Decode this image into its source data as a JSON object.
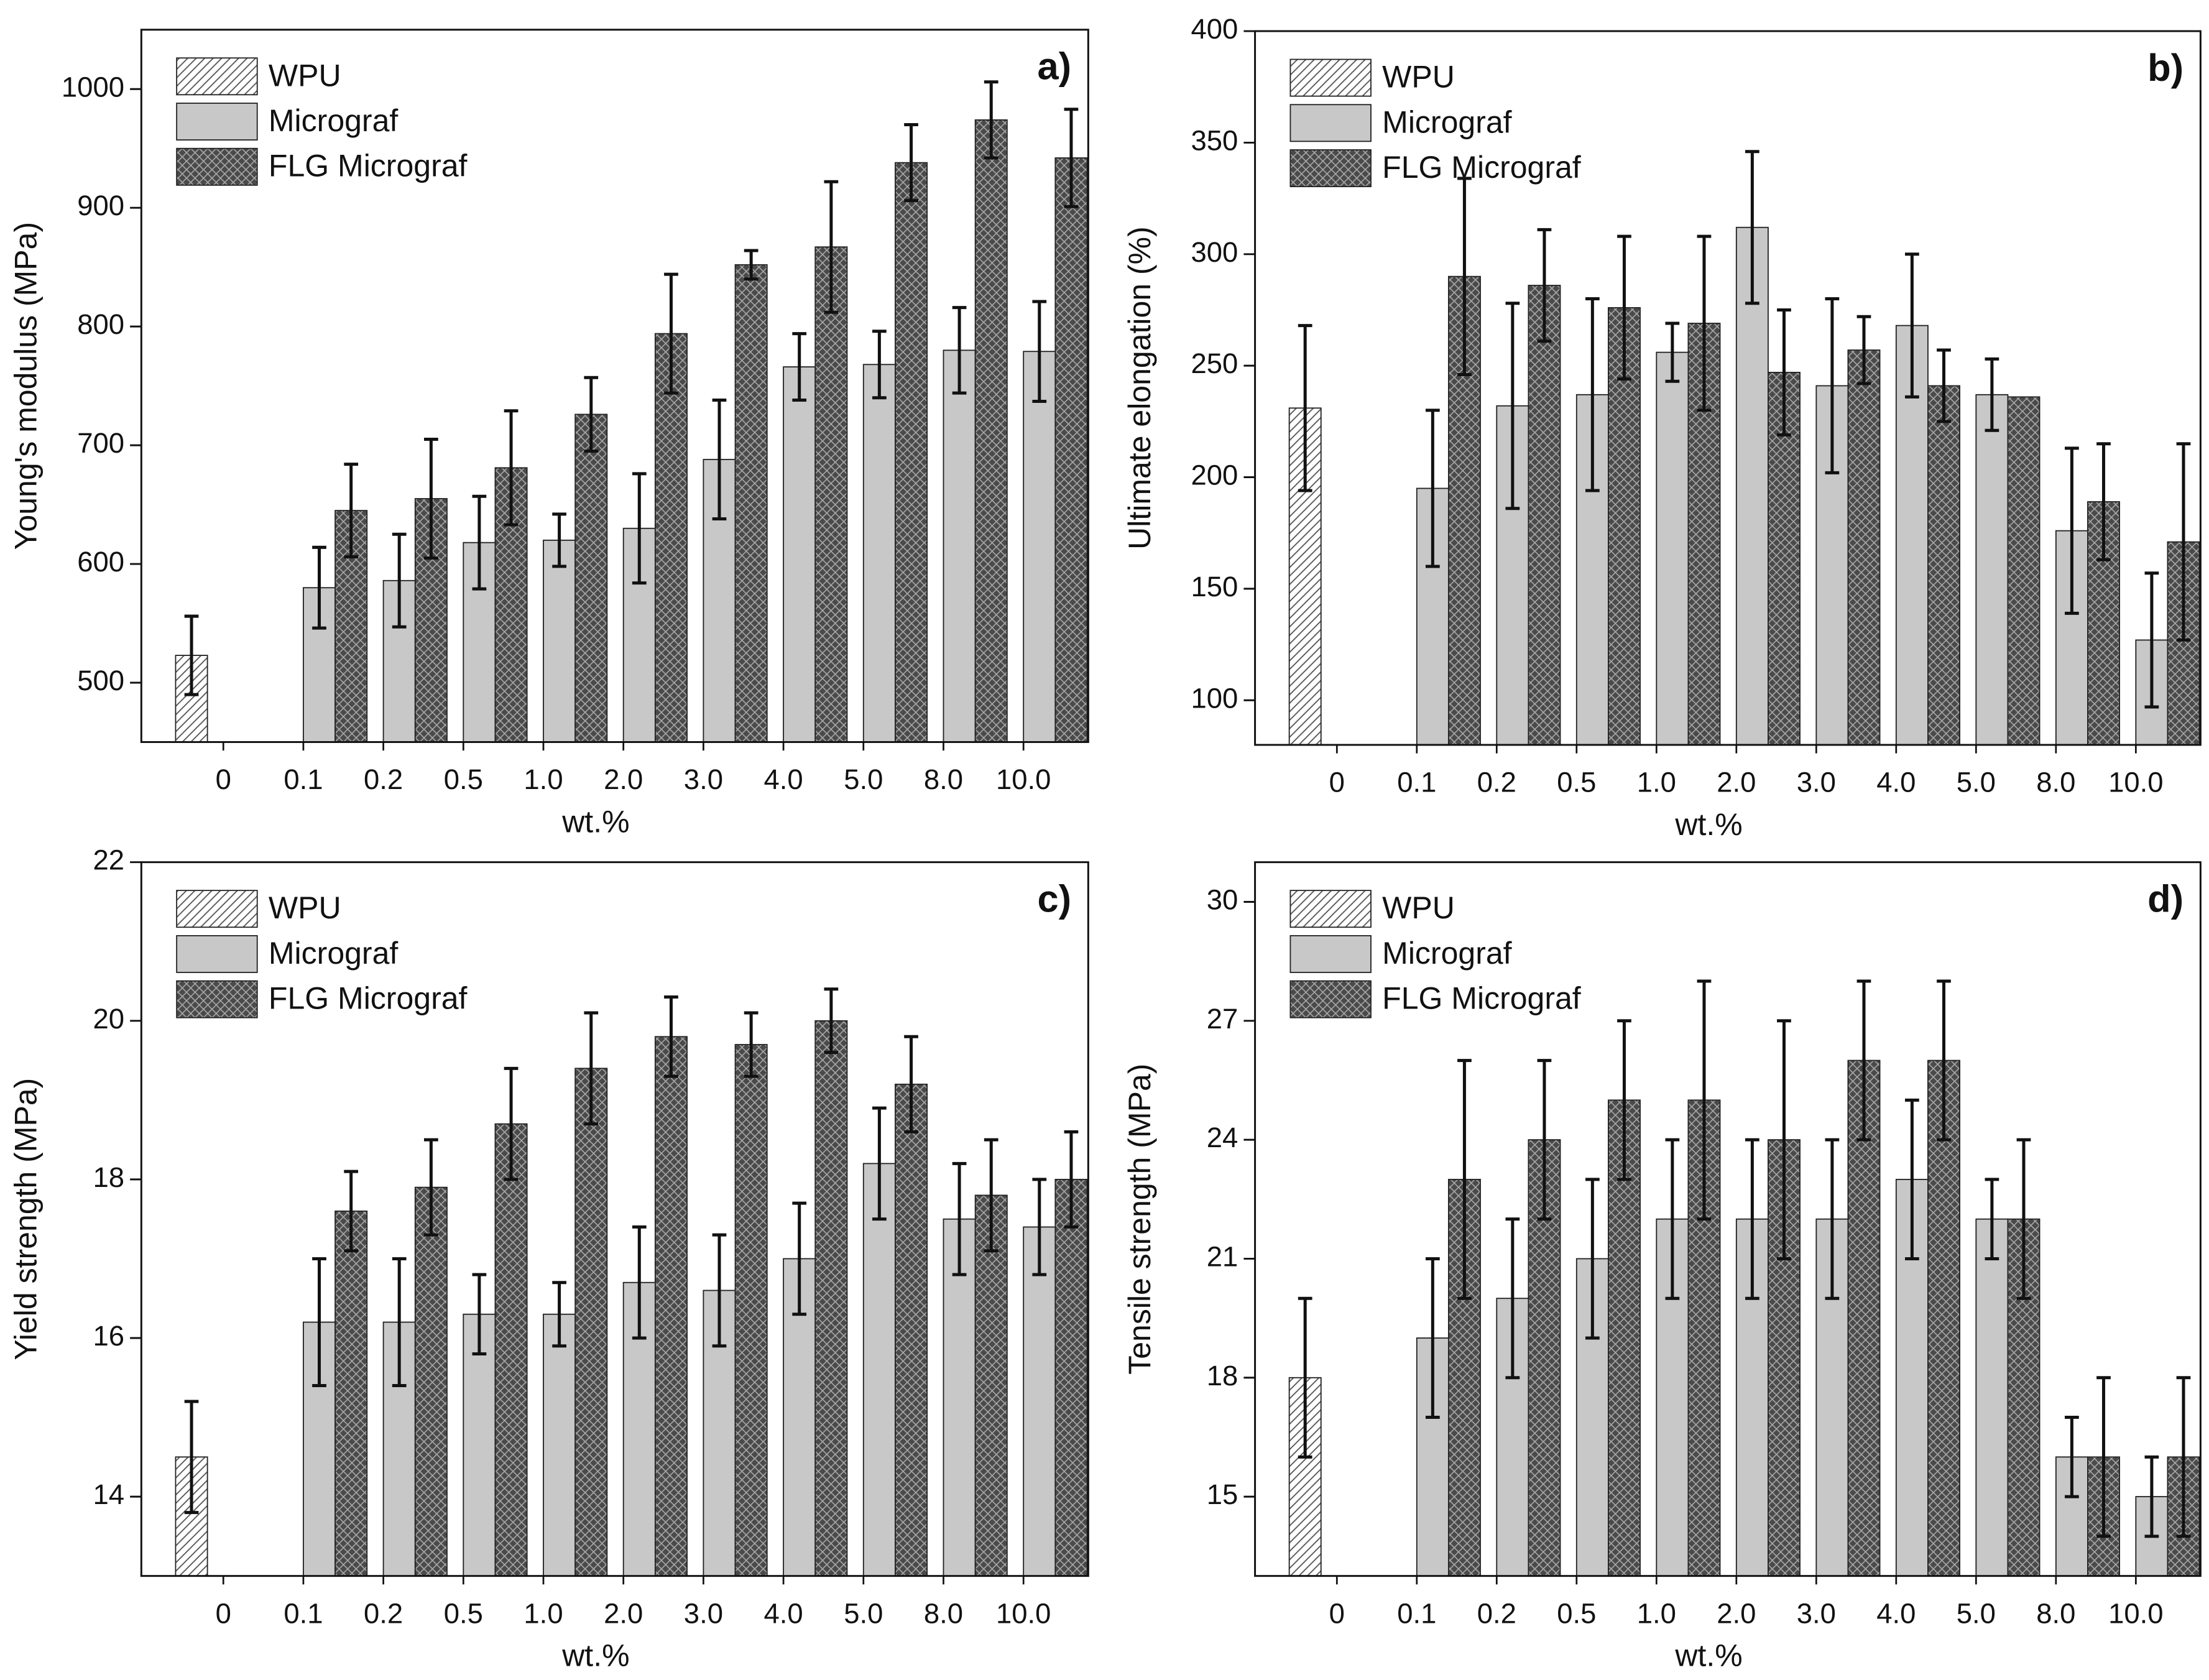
{
  "chart_data": [
    {
      "type": "bar",
      "panel_label": "a)",
      "x_label": "wt.%",
      "y_label": "Young's modulus (MPa)",
      "categories": [
        "0",
        "0.1",
        "0.2",
        "0.5",
        "1.0",
        "2.0",
        "3.0",
        "4.0",
        "5.0",
        "8.0",
        "10.0"
      ],
      "ylim": [
        450,
        1050
      ],
      "yticks": [
        500,
        600,
        700,
        800,
        900,
        1000
      ],
      "legend": "upper left",
      "series": [
        {
          "name": "WPU",
          "color": "#ffffff",
          "values": [
            523,
            null,
            null,
            null,
            null,
            null,
            null,
            null,
            null,
            null,
            null
          ],
          "errors": [
            33,
            null,
            null,
            null,
            null,
            null,
            null,
            null,
            null,
            null,
            null
          ]
        },
        {
          "name": "Micrograf",
          "color": "#c8c8c8",
          "values": [
            null,
            580,
            586,
            618,
            620,
            630,
            688,
            766,
            768,
            780,
            779
          ],
          "errors": [
            null,
            34,
            39,
            39,
            22,
            46,
            50,
            28,
            28,
            36,
            42
          ]
        },
        {
          "name": "FLG Micrograf",
          "color": "#4a4a4a",
          "values": [
            null,
            645,
            655,
            681,
            726,
            794,
            852,
            867,
            938,
            974,
            942
          ],
          "errors": [
            null,
            39,
            50,
            48,
            31,
            50,
            12,
            55,
            32,
            32,
            41
          ]
        }
      ]
    },
    {
      "type": "bar",
      "panel_label": "b)",
      "x_label": "wt.%",
      "y_label": "Ultimate elongation (%)",
      "categories": [
        "0",
        "0.1",
        "0.2",
        "0.5",
        "1.0",
        "2.0",
        "3.0",
        "4.0",
        "5.0",
        "8.0",
        "10.0"
      ],
      "ylim": [
        80,
        400
      ],
      "yticks": [
        100,
        150,
        200,
        250,
        300,
        350,
        400
      ],
      "legend": "upper left",
      "series": [
        {
          "name": "WPU",
          "color": "#ffffff",
          "values": [
            231,
            null,
            null,
            null,
            null,
            null,
            null,
            null,
            null,
            null,
            null
          ],
          "errors": [
            37,
            null,
            null,
            null,
            null,
            null,
            null,
            null,
            null,
            null,
            null
          ]
        },
        {
          "name": "Micrograf",
          "color": "#c8c8c8",
          "values": [
            null,
            195,
            232,
            237,
            256,
            312,
            241,
            268,
            237,
            176,
            127
          ],
          "errors": [
            null,
            35,
            46,
            43,
            13,
            34,
            39,
            32,
            16,
            37,
            30
          ]
        },
        {
          "name": "FLG Micrograf",
          "color": "#4a4a4a",
          "values": [
            null,
            290,
            286,
            276,
            269,
            247,
            257,
            241,
            236,
            189,
            171
          ],
          "errors": [
            null,
            44,
            25,
            32,
            39,
            28,
            15,
            16,
            0,
            26,
            44
          ]
        }
      ]
    },
    {
      "type": "bar",
      "panel_label": "c)",
      "x_label": "wt.%",
      "y_label": "Yield strength (MPa)",
      "categories": [
        "0",
        "0.1",
        "0.2",
        "0.5",
        "1.0",
        "2.0",
        "3.0",
        "4.0",
        "5.0",
        "8.0",
        "10.0"
      ],
      "ylim": [
        13,
        22
      ],
      "yticks": [
        14,
        16,
        18,
        20,
        22
      ],
      "legend": "upper left",
      "series": [
        {
          "name": "WPU",
          "color": "#ffffff",
          "values": [
            14.5,
            null,
            null,
            null,
            null,
            null,
            null,
            null,
            null,
            null,
            null
          ],
          "errors": [
            0.7,
            null,
            null,
            null,
            null,
            null,
            null,
            null,
            null,
            null,
            null
          ]
        },
        {
          "name": "Micrograf",
          "color": "#c8c8c8",
          "values": [
            null,
            16.2,
            16.2,
            16.3,
            16.3,
            16.7,
            16.6,
            17.0,
            18.2,
            17.5,
            17.4
          ],
          "errors": [
            null,
            0.8,
            0.8,
            0.5,
            0.4,
            0.7,
            0.7,
            0.7,
            0.7,
            0.7,
            0.6
          ]
        },
        {
          "name": "FLG Micrograf",
          "color": "#4a4a4a",
          "values": [
            null,
            17.6,
            17.9,
            18.7,
            19.4,
            19.8,
            19.7,
            20.0,
            19.2,
            17.8,
            18.0
          ],
          "errors": [
            null,
            0.5,
            0.6,
            0.7,
            0.7,
            0.5,
            0.4,
            0.4,
            0.6,
            0.7,
            0.6
          ]
        }
      ]
    },
    {
      "type": "bar",
      "panel_label": "d)",
      "x_label": "wt.%",
      "y_label": "Tensile strength (MPa)",
      "categories": [
        "0",
        "0.1",
        "0.2",
        "0.5",
        "1.0",
        "2.0",
        "3.0",
        "4.0",
        "5.0",
        "8.0",
        "10.0"
      ],
      "ylim": [
        13,
        31
      ],
      "yticks": [
        15,
        18,
        21,
        24,
        27,
        30
      ],
      "legend": "upper left",
      "series": [
        {
          "name": "WPU",
          "color": "#ffffff",
          "values": [
            18,
            null,
            null,
            null,
            null,
            null,
            null,
            null,
            null,
            null,
            null
          ],
          "errors": [
            2,
            null,
            null,
            null,
            null,
            null,
            null,
            null,
            null,
            null,
            null
          ]
        },
        {
          "name": "Micrograf",
          "color": "#c8c8c8",
          "values": [
            null,
            19,
            20,
            21,
            22,
            22,
            22,
            23,
            22,
            16,
            15
          ],
          "errors": [
            null,
            2,
            2,
            2,
            2,
            2,
            2,
            2,
            1,
            1,
            1
          ]
        },
        {
          "name": "FLG Micrograf",
          "color": "#4a4a4a",
          "values": [
            null,
            23,
            24,
            25,
            25,
            24,
            26,
            26,
            22,
            16,
            16
          ],
          "errors": [
            null,
            3,
            2,
            2,
            3,
            3,
            2,
            2,
            2,
            2,
            2
          ]
        }
      ]
    }
  ]
}
